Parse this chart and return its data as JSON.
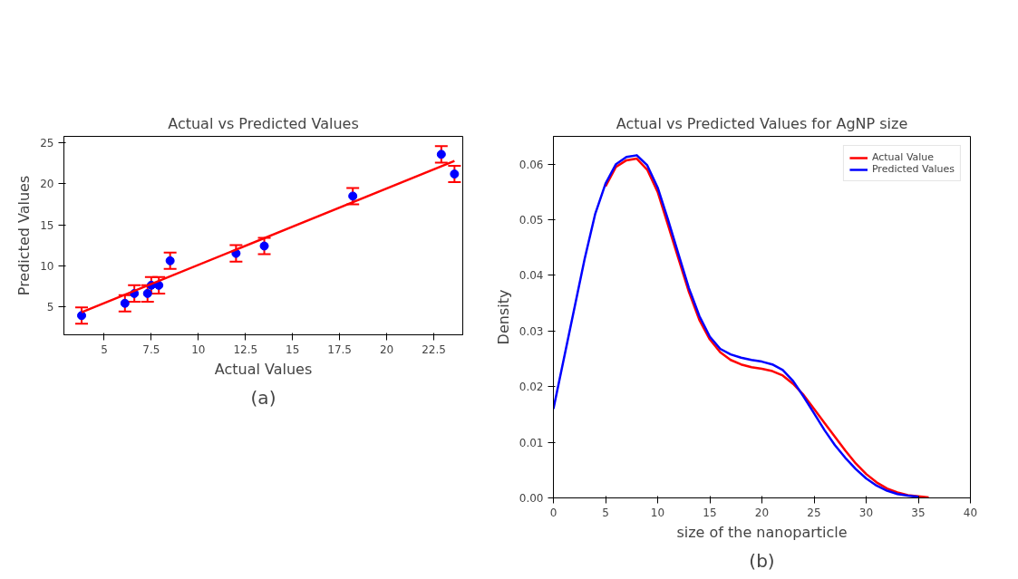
{
  "chart_data": [
    {
      "type": "scatter",
      "title": "Actual vs Predicted Values",
      "xlabel": "Actual Values",
      "ylabel": "Predicted Values",
      "annotations": [
        "(a)"
      ],
      "xlim": [
        2.86,
        24.04
      ],
      "ylim": [
        1.55,
        25.8
      ],
      "xticks": [
        5.0,
        7.5,
        10.0,
        12.5,
        15.0,
        17.5,
        20.0,
        22.5
      ],
      "yticks": [
        5,
        10,
        15,
        20,
        25
      ],
      "grid": false,
      "series": [
        {
          "type": "scatter",
          "color": "#0000ff",
          "marker": "circle",
          "x": [
            3.8,
            6.1,
            6.6,
            7.3,
            7.5,
            7.9,
            8.5,
            12.0,
            13.5,
            18.2,
            22.9,
            23.6
          ],
          "values": [
            3.9,
            5.4,
            6.6,
            6.6,
            7.6,
            7.6,
            10.6,
            11.5,
            12.4,
            18.5,
            23.6,
            21.2
          ],
          "errors": [
            1,
            1,
            1,
            1,
            1,
            1,
            1,
            1,
            1,
            1,
            1,
            1
          ]
        },
        {
          "type": "line",
          "color": "#ff0000",
          "x": [
            3.8,
            23.6
          ],
          "values": [
            4.3,
            22.8
          ]
        }
      ]
    },
    {
      "type": "line",
      "title": "Actual vs Predicted Values for AgNP size",
      "xlabel": "size of the nanoparticle",
      "ylabel": "Density",
      "annotations": [
        "(b)"
      ],
      "xlim": [
        0,
        40
      ],
      "ylim": [
        0,
        0.065
      ],
      "xticks": [
        0,
        5,
        10,
        15,
        20,
        25,
        30,
        35,
        40
      ],
      "yticks": [
        {
          "value": 0,
          "label": "0.00"
        },
        {
          "value": 0.01,
          "label": "0.01"
        },
        {
          "value": 0.02,
          "label": "0.02"
        },
        {
          "value": 0.03,
          "label": "0.03"
        },
        {
          "value": 0.04,
          "label": "0.04"
        },
        {
          "value": 0.05,
          "label": "0.05"
        },
        {
          "value": 0.06,
          "label": "0.06"
        }
      ],
      "grid": false,
      "legend": "top right",
      "x": [
        0,
        1,
        2,
        3,
        4,
        5,
        6,
        7,
        8,
        9,
        10,
        11,
        12,
        13,
        14,
        15,
        16,
        17,
        18,
        19,
        20,
        21,
        22,
        23,
        24,
        25,
        26,
        27,
        28,
        29,
        30,
        31,
        32,
        33,
        34,
        35,
        36
      ],
      "series": [
        {
          "name": "Actual Value",
          "color": "#ff0000",
          "values": [
            null,
            null,
            null,
            null,
            null,
            0.056,
            0.0595,
            0.0607,
            0.061,
            0.059,
            0.055,
            0.049,
            0.043,
            0.037,
            0.032,
            0.0285,
            0.0262,
            0.0248,
            0.024,
            0.0235,
            0.0232,
            0.0228,
            0.022,
            0.0205,
            0.0185,
            0.016,
            0.0135,
            0.011,
            0.0085,
            0.0062,
            0.0043,
            0.0028,
            0.0017,
            0.001,
            0.0005,
            0.0003,
            0.0001
          ]
        },
        {
          "name": "Predicted Values",
          "color": "#0000ff",
          "values": [
            0.016,
            0.025,
            0.034,
            0.043,
            0.051,
            0.0565,
            0.06,
            0.0613,
            0.0616,
            0.0598,
            0.0558,
            0.05,
            0.0438,
            0.0377,
            0.0327,
            0.029,
            0.0268,
            0.0258,
            0.0252,
            0.0248,
            0.0245,
            0.024,
            0.023,
            0.021,
            0.0182,
            0.0152,
            0.0122,
            0.0095,
            0.0072,
            0.0052,
            0.0035,
            0.0022,
            0.0013,
            0.0007,
            0.0004,
            0.0002,
            null
          ]
        }
      ]
    }
  ]
}
